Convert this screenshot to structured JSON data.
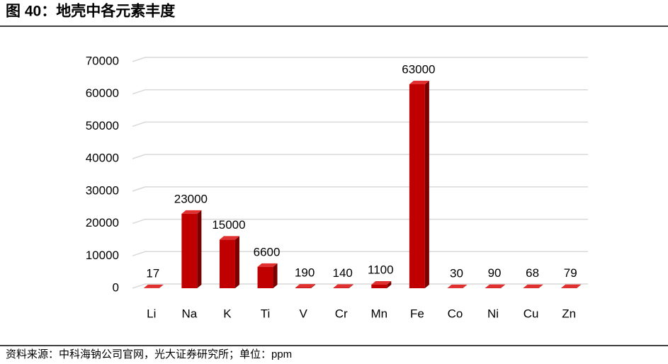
{
  "chart_data": {
    "type": "bar",
    "title": "图 40：地壳中各元素丰度",
    "categories": [
      "Li",
      "Na",
      "K",
      "Ti",
      "V",
      "Cr",
      "Mn",
      "Fe",
      "Co",
      "Ni",
      "Cu",
      "Zn"
    ],
    "values": [
      17,
      23000,
      15000,
      6600,
      190,
      140,
      1100,
      63000,
      30,
      90,
      68,
      79
    ],
    "color": "#c00000",
    "ylim": [
      0,
      70000
    ],
    "yticks": [
      0,
      10000,
      20000,
      30000,
      40000,
      50000,
      60000,
      70000
    ],
    "grid": true,
    "source": "资料来源：中科海钠公司官网，光大证券研究所；单位：ppm"
  }
}
